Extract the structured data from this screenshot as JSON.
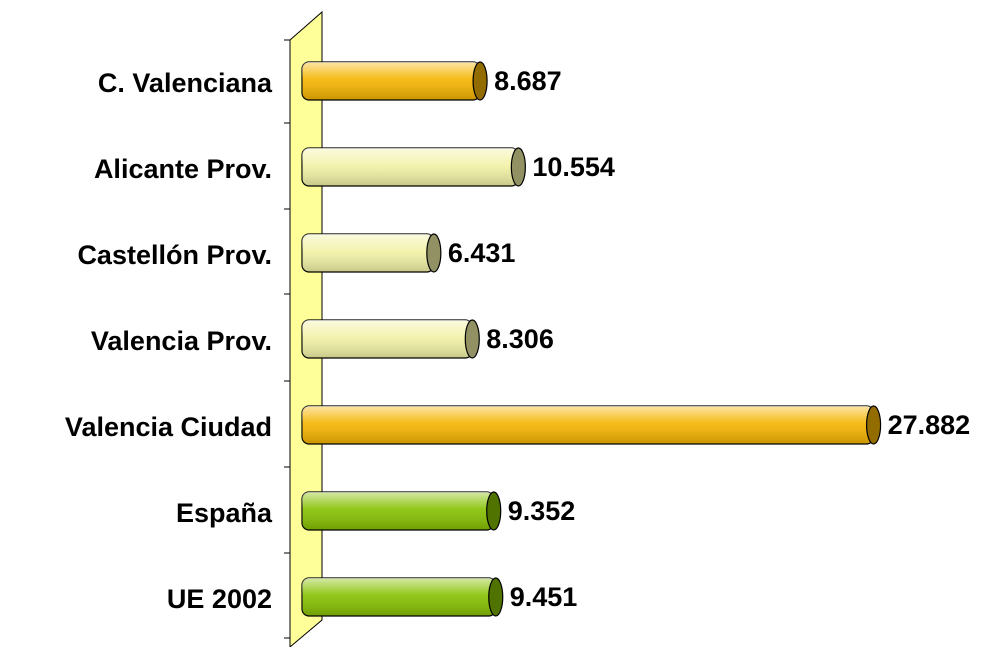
{
  "chart_data": {
    "type": "bar",
    "orientation": "horizontal",
    "categories": [
      "C. Valenciana",
      "Alicante Prov.",
      "Castellón Prov.",
      "Valencia Prov.",
      "Valencia Ciudad",
      "España",
      "UE 2002"
    ],
    "values": [
      8.687,
      10.554,
      6.431,
      8.306,
      27.882,
      9.352,
      9.451
    ],
    "colors": [
      "#f5b400",
      "#f2f2a6",
      "#f2f2a6",
      "#f2f2a6",
      "#f5b400",
      "#86c000",
      "#86c000"
    ],
    "xlim": [
      0,
      28
    ]
  }
}
